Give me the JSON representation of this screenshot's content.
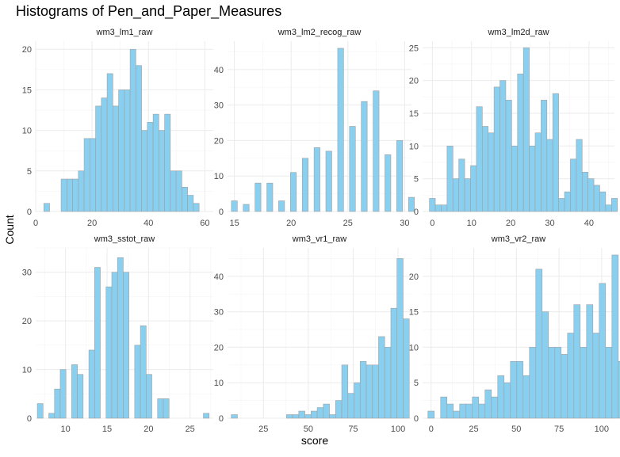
{
  "chart_data": {
    "type": "bar",
    "title": "Histograms of Pen_and_Paper_Measures",
    "xlabel": "score",
    "ylabel": "Count",
    "grid": true,
    "bar_color": "#89CFF0",
    "bar_border_color": "#a0a0a0",
    "panels": [
      {
        "name": "wm3_lm1_raw",
        "xlim": [
          0,
          63
        ],
        "ylim": [
          0,
          21
        ],
        "xticks": [
          0,
          20,
          40,
          60
        ],
        "yticks": [
          0,
          5,
          10,
          15,
          20
        ],
        "bin_width": 2.04,
        "bins_start": 2.9,
        "counts": [
          1,
          0,
          0,
          4,
          4,
          4,
          5,
          9,
          9,
          13,
          14,
          17,
          13,
          15,
          15,
          20,
          18,
          10,
          11,
          12,
          10,
          12,
          5,
          5,
          3,
          2,
          1
        ]
      },
      {
        "name": "wm3_lm2_recog_raw",
        "xlim": [
          14.4,
          30.6
        ],
        "ylim": [
          0,
          48
        ],
        "xticks": [
          15,
          20,
          25,
          30
        ],
        "yticks": [
          0,
          10,
          20,
          30,
          40
        ],
        "bin_width": 0.52,
        "bins_start": 14.74,
        "counts": [
          3,
          0,
          2,
          0,
          8,
          0,
          8,
          0,
          3,
          0,
          11,
          0,
          15,
          0,
          18,
          0,
          17,
          0,
          46,
          0,
          24,
          0,
          31,
          0,
          34,
          0,
          16,
          0,
          20,
          0,
          4
        ]
      },
      {
        "name": "wm3_lm2d_raw",
        "xlim": [
          -2.5,
          46.5
        ],
        "ylim": [
          0,
          26
        ],
        "xticks": [
          0,
          10,
          20,
          30,
          40
        ],
        "yticks": [
          0,
          5,
          10,
          15,
          20,
          25
        ],
        "bin_width": 1.5,
        "bins_start": -0.75,
        "counts": [
          2,
          1,
          1,
          10,
          5,
          8,
          5,
          7,
          16,
          13,
          12,
          19,
          20,
          17,
          10,
          21,
          25,
          10,
          12,
          17,
          11,
          18,
          2,
          3,
          8,
          11,
          6,
          5,
          4,
          3,
          1,
          2,
          0,
          1,
          1
        ]
      },
      {
        "name": "wm3_sstot_raw",
        "xlim": [
          6.4,
          27.8
        ],
        "ylim": [
          0,
          35
        ],
        "xticks": [
          10,
          15,
          20,
          25
        ],
        "yticks": [
          0,
          10,
          20,
          30
        ],
        "bin_width": 0.69,
        "bins_start": 6.6,
        "counts": [
          3,
          0,
          1,
          6,
          10,
          0,
          11,
          9,
          0,
          14,
          31,
          0,
          27,
          30,
          33,
          30,
          0,
          15,
          19,
          9,
          0,
          4,
          4,
          0,
          0,
          0,
          0,
          0,
          0,
          1
        ]
      },
      {
        "name": "wm3_vr1_raw",
        "xlim": [
          5,
          107.5
        ],
        "ylim": [
          0,
          48
        ],
        "xticks": [
          25,
          50,
          75,
          100
        ],
        "yticks": [
          0,
          10,
          20,
          30,
          40
        ],
        "bin_width": 3.42,
        "bins_start": 7.08,
        "counts": [
          1,
          0,
          0,
          0,
          0,
          0,
          0,
          0,
          0,
          1,
          1,
          2,
          1,
          2,
          3,
          4,
          1,
          5,
          15,
          7,
          10,
          16,
          15,
          15,
          23,
          20,
          31,
          45,
          28
        ]
      },
      {
        "name": "wm3_vr2_raw",
        "xlim": [
          -5,
          107.5
        ],
        "ylim": [
          0,
          24
        ],
        "xticks": [
          0,
          25,
          50,
          75,
          100
        ],
        "yticks": [
          0,
          5,
          10,
          15,
          20
        ],
        "bin_width": 3.72,
        "bins_start": -1.86,
        "counts": [
          1,
          0,
          3,
          2,
          1,
          2,
          2,
          3,
          2,
          4,
          3,
          6,
          5,
          8,
          8,
          6,
          10,
          21,
          15,
          10,
          10,
          9,
          12,
          16,
          10,
          16,
          12,
          19,
          10,
          23,
          8
        ]
      }
    ]
  }
}
